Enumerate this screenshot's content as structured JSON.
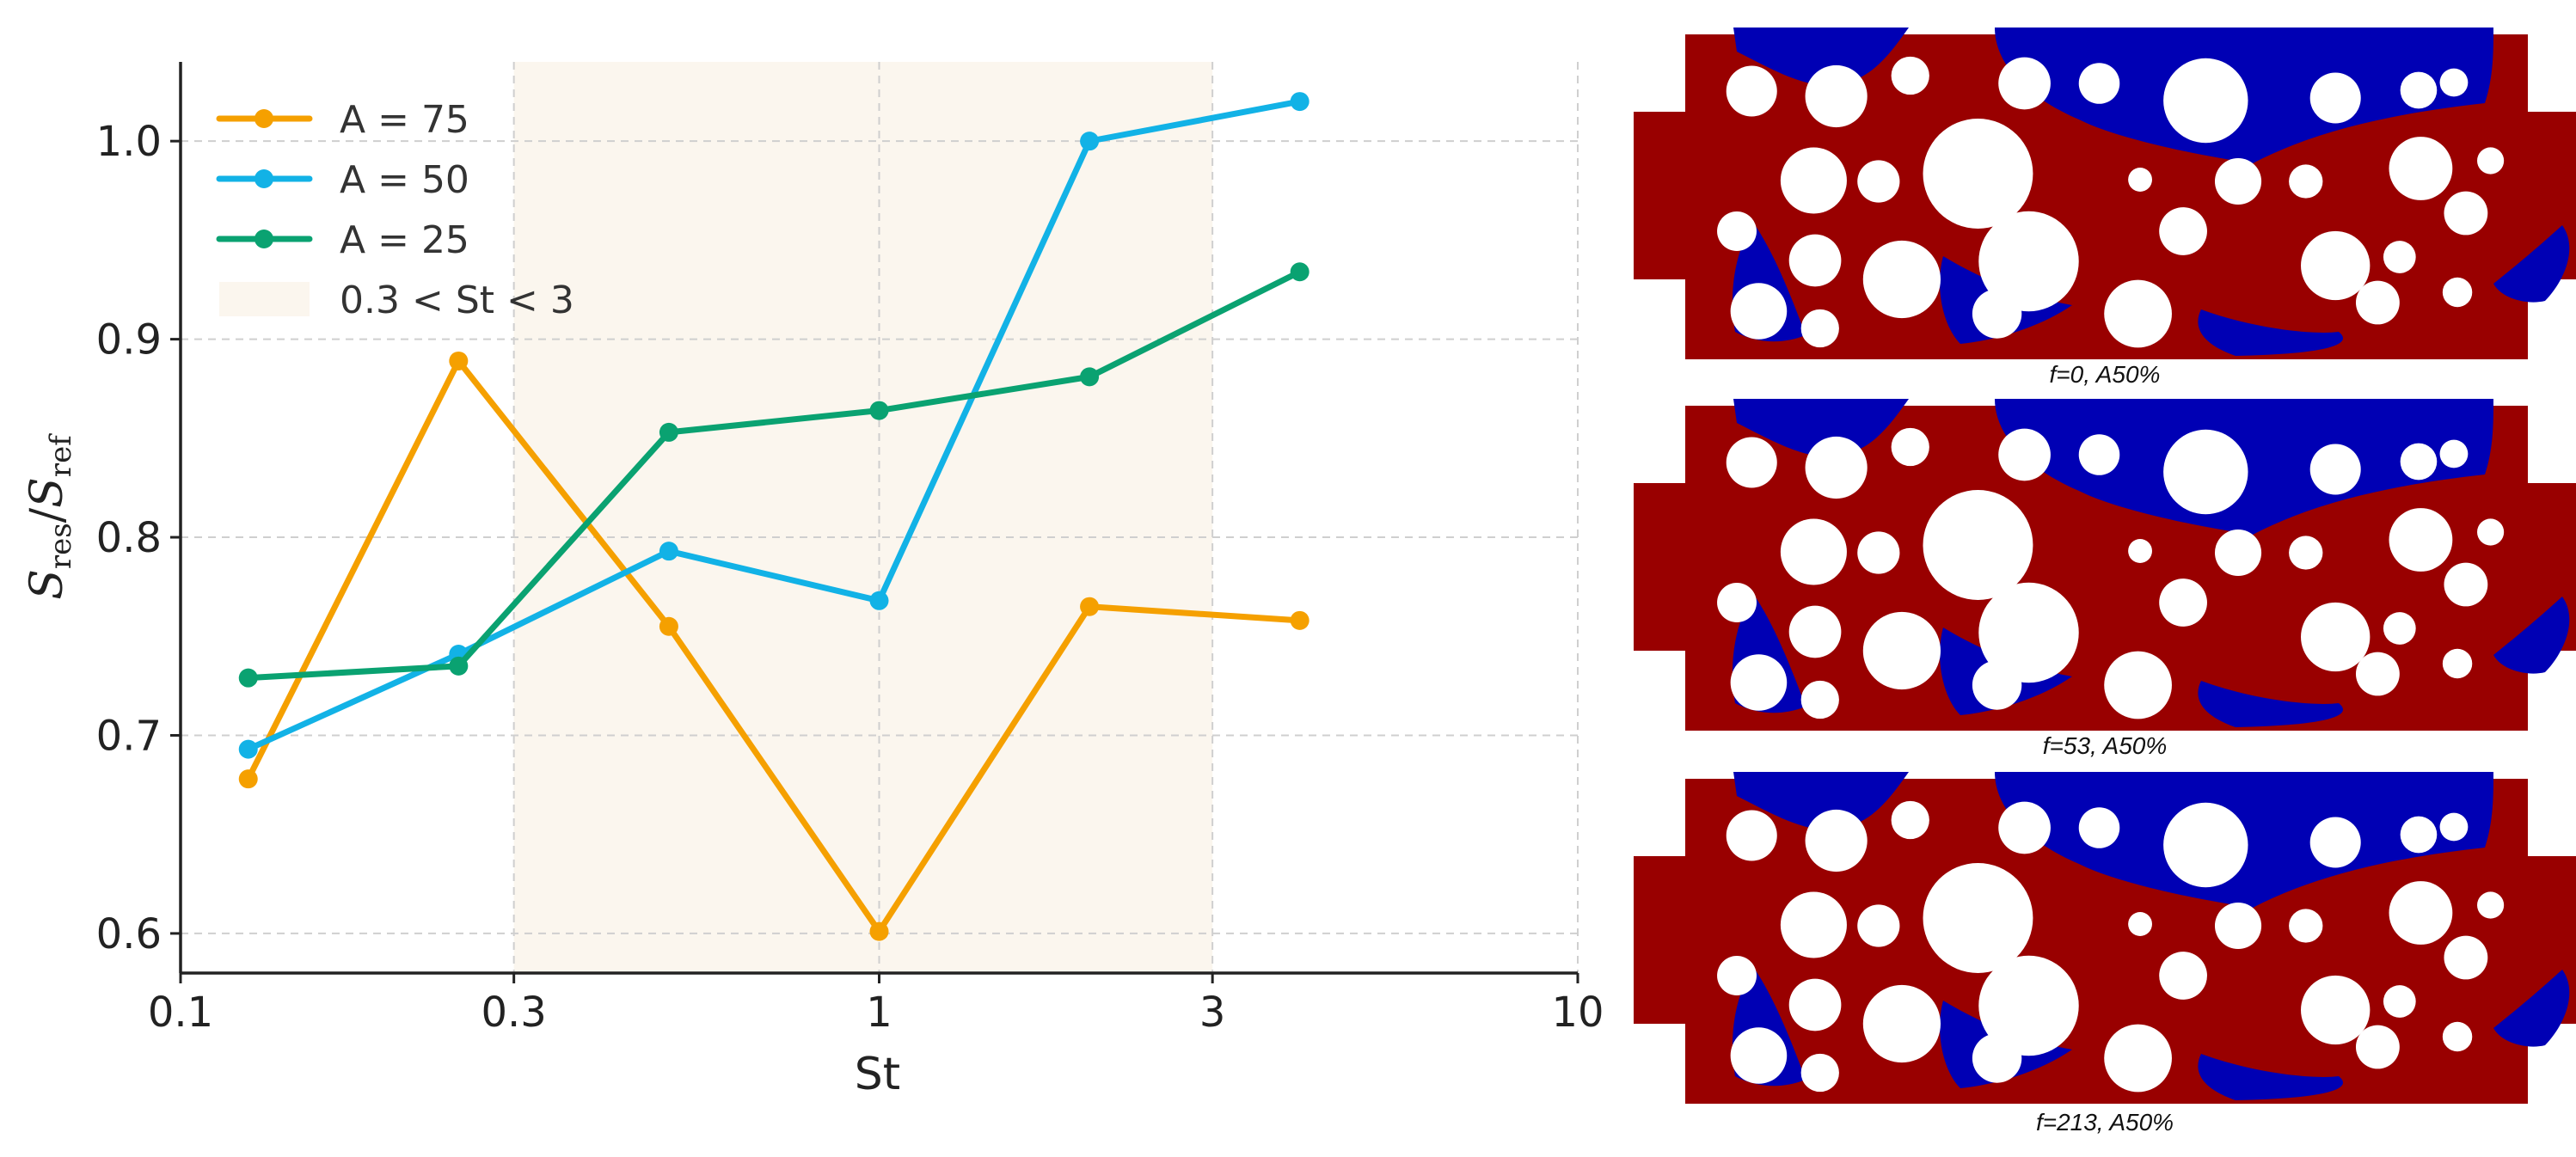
{
  "chart_data": {
    "type": "line",
    "xscale": "log",
    "xlabel": "St",
    "ylabel_main": "S",
    "ylabel_sub1": "res",
    "ylabel_sep": "/",
    "ylabel_sub2": "ref",
    "xlim": [
      0.1,
      10
    ],
    "ylim": [
      0.58,
      1.04
    ],
    "xticks": [
      0.1,
      0.3,
      1,
      3,
      10
    ],
    "xtick_labels": [
      "0.1",
      "0.3",
      "1",
      "3",
      "10"
    ],
    "yticks": [
      0.6,
      0.7,
      0.8,
      0.9,
      1.0
    ],
    "ytick_labels": [
      "0.6",
      "0.7",
      "0.8",
      "0.9",
      "1.0"
    ],
    "grid": true,
    "legend_position": "top-left",
    "x": [
      0.125,
      0.25,
      0.5,
      1,
      2,
      4
    ],
    "series": [
      {
        "name": "A = 75",
        "color": "#f5a000",
        "values": [
          0.678,
          0.889,
          0.755,
          0.601,
          0.765,
          0.758
        ]
      },
      {
        "name": "A = 50",
        "color": "#12b2e6",
        "values": [
          0.693,
          0.741,
          0.793,
          0.768,
          1.0,
          1.02
        ]
      },
      {
        "name": "A = 25",
        "color": "#0aa271",
        "values": [
          0.729,
          0.735,
          0.853,
          0.864,
          0.881,
          0.934
        ]
      }
    ],
    "shaded_region": {
      "x": [
        0.3,
        3
      ],
      "color": "#fbf6ee",
      "label": "0.3 < St < 3"
    }
  },
  "figure_panels": [
    {
      "caption": "f=0, A50%"
    },
    {
      "caption": "f=53, A50%"
    },
    {
      "caption": "f=213, A50%"
    }
  ],
  "colors": {
    "fluid_red": "#990000",
    "fluid_blue": "#0000b4",
    "axis": "#222222",
    "gridline": "#cfcfcf"
  }
}
